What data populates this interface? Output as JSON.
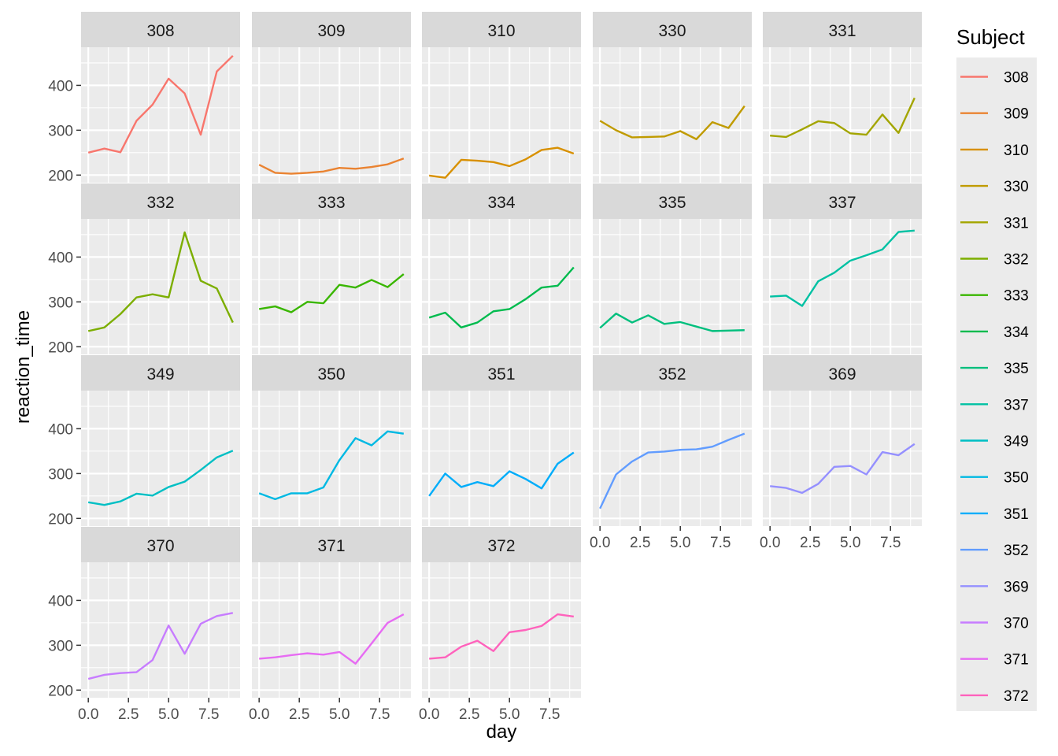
{
  "chart_data": {
    "type": "line",
    "xlabel": "day",
    "ylabel": "reaction_time",
    "xlim": [
      -0.45,
      9.45
    ],
    "ylim": [
      183,
      485
    ],
    "x_ticks": [
      0,
      2.5,
      5,
      7.5
    ],
    "x_tick_labels": [
      "0.0",
      "2.5",
      "5.0",
      "7.5"
    ],
    "y_ticks": [
      200,
      300,
      400
    ],
    "y_tick_labels": [
      "200",
      "300",
      "400"
    ],
    "x": [
      0,
      1,
      2,
      3,
      4,
      5,
      6,
      7,
      8,
      9
    ],
    "grid": true,
    "facet_columns": 5,
    "legend": {
      "title": "Subject",
      "placement": "right"
    },
    "series": [
      {
        "name": "308",
        "color": "#F8766D",
        "values": [
          250,
          259,
          251,
          321,
          357,
          415,
          382,
          290,
          431,
          466
        ]
      },
      {
        "name": "309",
        "color": "#EA8331",
        "values": [
          223,
          205,
          203,
          205,
          208,
          216,
          214,
          218,
          224,
          237
        ]
      },
      {
        "name": "310",
        "color": "#D89000",
        "values": [
          199,
          194,
          234,
          232,
          229,
          220,
          235,
          256,
          261,
          248
        ]
      },
      {
        "name": "330",
        "color": "#C09B00",
        "values": [
          321,
          300,
          284,
          285,
          286,
          298,
          280,
          318,
          305,
          354
        ]
      },
      {
        "name": "331",
        "color": "#A3A500",
        "values": [
          288,
          285,
          302,
          320,
          316,
          293,
          290,
          335,
          294,
          372
        ]
      },
      {
        "name": "332",
        "color": "#7CAE00",
        "values": [
          235,
          243,
          273,
          310,
          317,
          310,
          455,
          347,
          330,
          254
        ]
      },
      {
        "name": "333",
        "color": "#39B600",
        "values": [
          284,
          290,
          277,
          300,
          297,
          338,
          332,
          349,
          333,
          362
        ]
      },
      {
        "name": "334",
        "color": "#00BB4E",
        "values": [
          265,
          276,
          243,
          254,
          279,
          284,
          306,
          332,
          336,
          377
        ]
      },
      {
        "name": "335",
        "color": "#00BF7D",
        "values": [
          242,
          274,
          254,
          270,
          251,
          255,
          245,
          235,
          236,
          237
        ]
      },
      {
        "name": "337",
        "color": "#00C1A3",
        "values": [
          312,
          314,
          291,
          346,
          365,
          392,
          404,
          417,
          456,
          459
        ]
      },
      {
        "name": "349",
        "color": "#00BFC4",
        "values": [
          236,
          230,
          238,
          255,
          251,
          270,
          282,
          308,
          336,
          351
        ]
      },
      {
        "name": "350",
        "color": "#00B9E3",
        "values": [
          256,
          243,
          256,
          256,
          269,
          330,
          379,
          363,
          394,
          389
        ]
      },
      {
        "name": "351",
        "color": "#00ADFA",
        "values": [
          250,
          300,
          270,
          281,
          272,
          305,
          288,
          267,
          322,
          347
        ]
      },
      {
        "name": "352",
        "color": "#619CFF",
        "values": [
          222,
          298,
          327,
          347,
          349,
          353,
          354,
          360,
          375,
          389
        ]
      },
      {
        "name": "369",
        "color": "#9590FF",
        "values": [
          272,
          268,
          257,
          277,
          315,
          317,
          298,
          348,
          341,
          366
        ]
      },
      {
        "name": "370",
        "color": "#C77CFF",
        "values": [
          225,
          234,
          238,
          240,
          267,
          344,
          281,
          348,
          365,
          372
        ]
      },
      {
        "name": "371",
        "color": "#E76BF3",
        "values": [
          270,
          273,
          278,
          282,
          279,
          285,
          259,
          304,
          350,
          369
        ]
      },
      {
        "name": "372",
        "color": "#FF62BC",
        "values": [
          270,
          273,
          297,
          310,
          287,
          329,
          334,
          343,
          369,
          364
        ]
      }
    ],
    "legend_key_colors": [
      "#F8766D",
      "#EA8331",
      "#D89000",
      "#C09B00",
      "#A3A500",
      "#7CAE00",
      "#39B600",
      "#00BB4E",
      "#00BF7D",
      "#00C1A3",
      "#00BFC4",
      "#00B9E3",
      "#00ADFA",
      "#619CFF",
      "#9590FF",
      "#C77CFF",
      "#E76BF3",
      "#FF62BC"
    ]
  }
}
